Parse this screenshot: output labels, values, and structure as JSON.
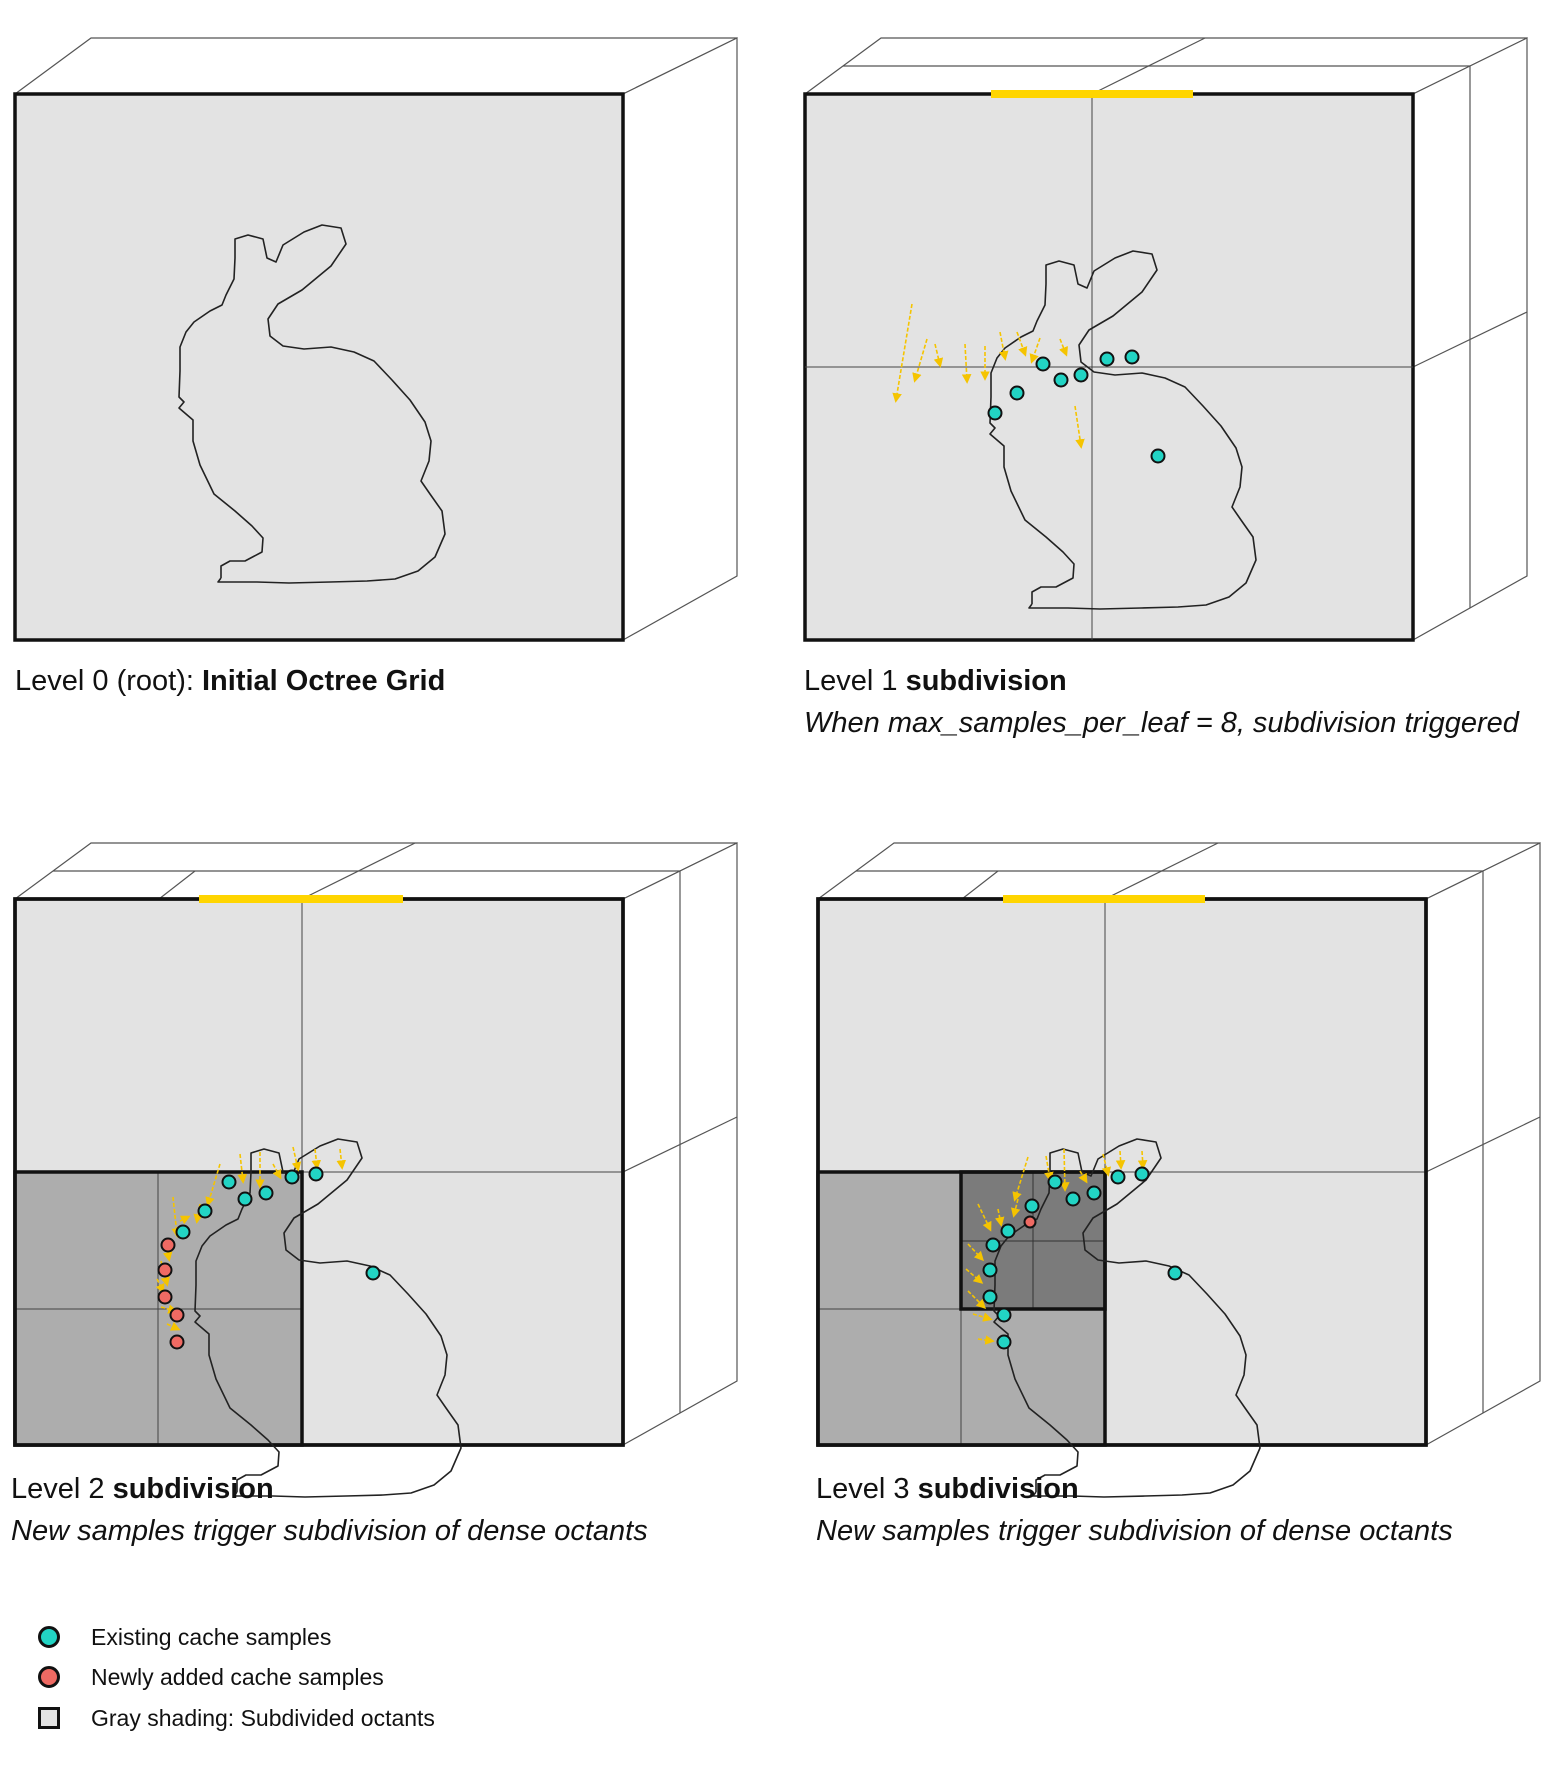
{
  "panels": [
    {
      "level_text": "Level 0 (root): ",
      "bold_text": "Initial Octree Grid",
      "subtitle": ""
    },
    {
      "level_text": "Level 1 ",
      "bold_text": "subdivision",
      "subtitle": "When max_samples_per_leaf = 8, subdivision triggered"
    },
    {
      "level_text": "Level 2 ",
      "bold_text": "subdivision",
      "subtitle": "New samples trigger subdivision of dense octants"
    },
    {
      "level_text": "Level 3 ",
      "bold_text": "subdivision",
      "subtitle": "New samples trigger subdivision of dense octants"
    }
  ],
  "legend": [
    {
      "label": "Existing cache samples",
      "color": "#22d4c4",
      "shape": "circle"
    },
    {
      "label": "Newly added cache samples",
      "color": "#ef6a63",
      "shape": "circle"
    },
    {
      "label": "Gray shading: Subdivided octants",
      "color": "#e3e3e3",
      "shape": "square"
    }
  ],
  "colors": {
    "cell_light": "#e3e3e3",
    "cell_mid": "#adadad",
    "cell_dark": "#7b7b7b",
    "highlight_bar": "#ffd500",
    "arrow": "#f5c400",
    "existing_sample": "#22d4c4",
    "new_sample": "#ef6a63"
  }
}
